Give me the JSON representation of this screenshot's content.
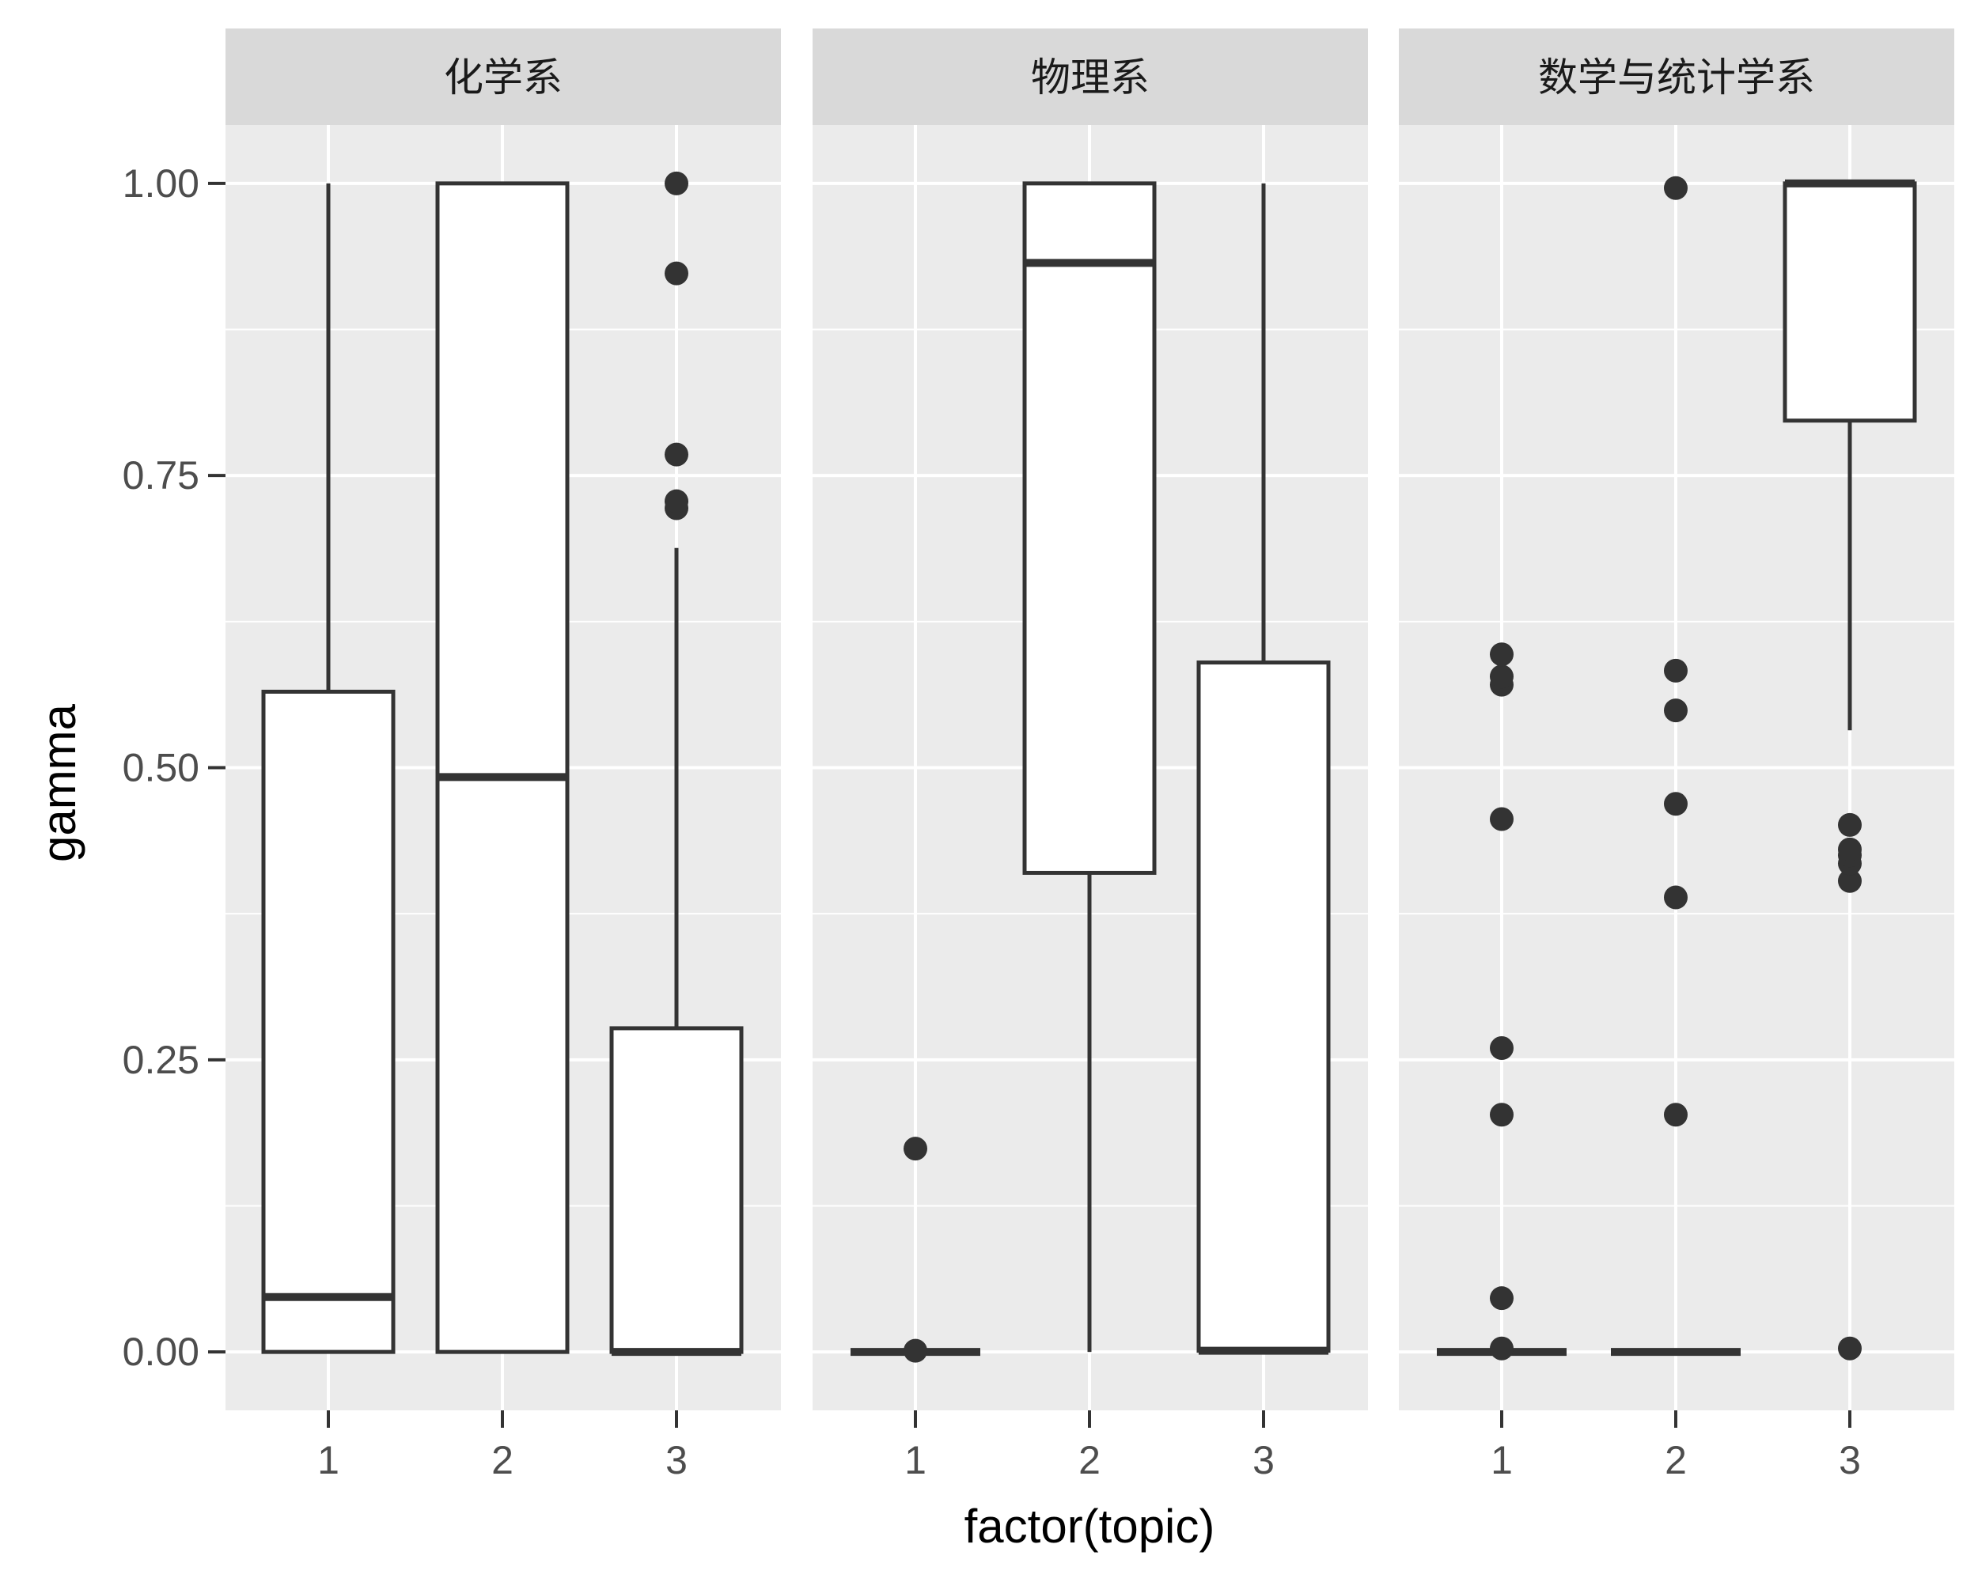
{
  "chart_data": {
    "type": "boxplot",
    "facet_by": "department",
    "xlabel": "factor(topic)",
    "ylabel": "gamma",
    "ylim": [
      -0.05,
      1.05
    ],
    "y_ticks": [
      "0.00",
      "0.25",
      "0.50",
      "0.75",
      "1.00"
    ],
    "y_tick_values": [
      0,
      0.25,
      0.5,
      0.75,
      1
    ],
    "categories": [
      "1",
      "2",
      "3"
    ],
    "colors": {
      "panel_bg": "#ebebeb",
      "strip_bg": "#d9d9d9",
      "grid": "#ffffff",
      "box_fill": "#ffffff",
      "box_line": "#333333"
    },
    "facets": [
      {
        "label": "化学系",
        "boxes": [
          {
            "topic": "1",
            "lower": 0.0,
            "q1": 0.0,
            "median": 0.047,
            "q3": 0.565,
            "upper": 1.0,
            "outliers": []
          },
          {
            "topic": "2",
            "lower": 0.0,
            "q1": 0.0,
            "median": 0.492,
            "q3": 1.0,
            "upper": 1.0,
            "outliers": []
          },
          {
            "topic": "3",
            "lower": 0.0,
            "q1": 0.0,
            "median": 0.0,
            "q3": 0.277,
            "upper": 0.688,
            "outliers": [
              0.722,
              0.728,
              0.768,
              0.923,
              1.0
            ]
          }
        ]
      },
      {
        "label": "物理系",
        "boxes": [
          {
            "topic": "1",
            "lower": 0.0,
            "q1": 0.0,
            "median": 0.0,
            "q3": 0.0,
            "upper": 0.0,
            "outliers": [
              0.001,
              0.174
            ]
          },
          {
            "topic": "2",
            "lower": 0.0,
            "q1": 0.41,
            "median": 0.932,
            "q3": 1.0,
            "upper": 1.0,
            "outliers": []
          },
          {
            "topic": "3",
            "lower": 0.0,
            "q1": 0.001,
            "median": 0.001,
            "q3": 0.59,
            "upper": 1.0,
            "outliers": []
          }
        ]
      },
      {
        "label": "数学与统计学系",
        "boxes": [
          {
            "topic": "1",
            "lower": 0.0,
            "q1": 0.0,
            "median": 0.0,
            "q3": 0.0,
            "upper": 0.0,
            "outliers": [
              0.003,
              0.046,
              0.203,
              0.26,
              0.456,
              0.571,
              0.578,
              0.597
            ]
          },
          {
            "topic": "2",
            "lower": 0.0,
            "q1": 0.0,
            "median": 0.0,
            "q3": 0.0,
            "upper": 0.0,
            "outliers": [
              0.203,
              0.389,
              0.469,
              0.549,
              0.583,
              0.996
            ]
          },
          {
            "topic": "3",
            "lower": 0.532,
            "q1": 0.797,
            "median": 1.0,
            "q3": 1.0,
            "upper": 1.0,
            "outliers": [
              0.003,
              0.403,
              0.418,
              0.425,
              0.43,
              0.451
            ]
          }
        ]
      }
    ]
  }
}
